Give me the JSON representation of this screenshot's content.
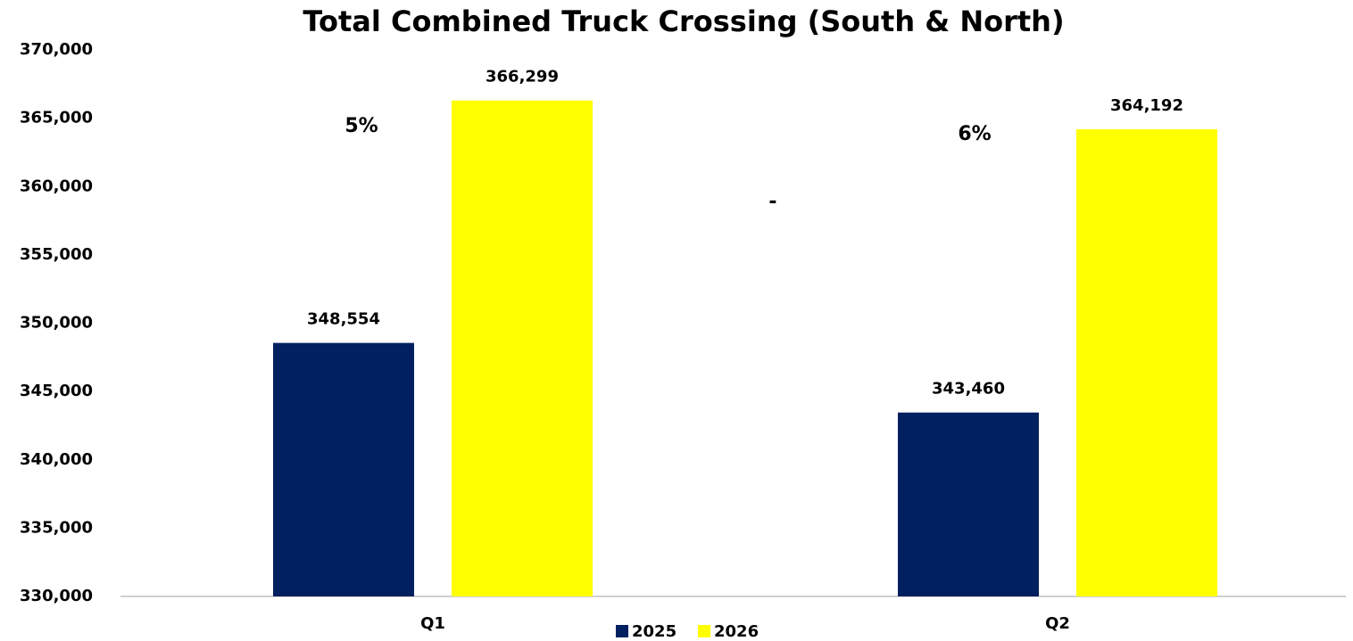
{
  "chart_data": {
    "type": "bar",
    "title": "Total Combined Truck Crossing (South & North)",
    "categories": [
      "Q1",
      "Q2"
    ],
    "series": [
      {
        "name": "2025",
        "color": "#002060",
        "values": [
          348554,
          343460
        ],
        "value_labels": [
          "348,554",
          "343,460"
        ]
      },
      {
        "name": "2026",
        "color": "#ffff00",
        "values": [
          366299,
          364192
        ],
        "value_labels": [
          "366,299",
          "364,192"
        ]
      }
    ],
    "annotations": [
      "5%",
      "-",
      "6%"
    ],
    "ylim": [
      330000,
      370000
    ],
    "yticks": [
      {
        "value": 330000,
        "label": "330,000"
      },
      {
        "value": 335000,
        "label": "335,000"
      },
      {
        "value": 340000,
        "label": "340,000"
      },
      {
        "value": 345000,
        "label": "345,000"
      },
      {
        "value": 350000,
        "label": "350,000"
      },
      {
        "value": 355000,
        "label": "355,000"
      },
      {
        "value": 360000,
        "label": "360,000"
      },
      {
        "value": 365000,
        "label": "365,000"
      },
      {
        "value": 370000,
        "label": "370,000"
      }
    ],
    "grid": false,
    "legend": "bottom"
  }
}
